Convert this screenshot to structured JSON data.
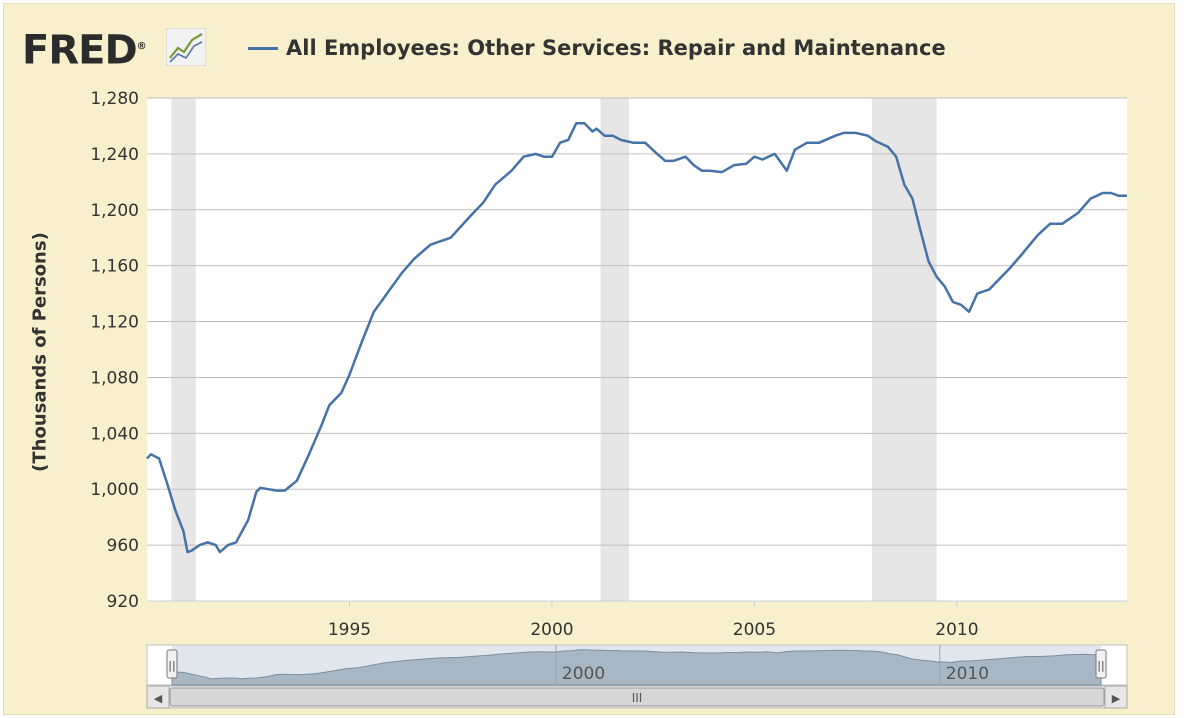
{
  "header": {
    "logo_text": "FRED",
    "logo_registered": "®",
    "logo_icon": "line-chart-icon"
  },
  "colors": {
    "series": "#4572a7",
    "recession": "#e6e6e6",
    "background": "#f8efcd",
    "plot_bg": "#ffffff",
    "grid": "#c0c0c0"
  },
  "chart_data": {
    "type": "line",
    "title": "",
    "xlabel": "",
    "ylabel": "(Thousands of Persons)",
    "x_range": [
      1990.0,
      2014.2
    ],
    "ylim": [
      920,
      1280
    ],
    "y_ticks": [
      920,
      960,
      1000,
      1040,
      1080,
      1120,
      1160,
      1200,
      1240,
      1280
    ],
    "y_tick_labels": [
      "920",
      "960",
      "1,000",
      "1,040",
      "1,080",
      "1,120",
      "1,160",
      "1,200",
      "1,240",
      "1,280"
    ],
    "x_ticks": [
      1995,
      2000,
      2005,
      2010
    ],
    "x_tick_labels": [
      "1995",
      "2000",
      "2005",
      "2010"
    ],
    "grid": true,
    "legend_placement": "top-left",
    "recessions": [
      [
        1990.6,
        1991.2
      ],
      [
        2001.2,
        2001.9
      ],
      [
        2007.9,
        2009.5
      ]
    ],
    "series": [
      {
        "name": "All Employees: Other Services: Repair and Maintenance",
        "x": [
          1990.0,
          1990.1,
          1990.3,
          1990.5,
          1990.7,
          1990.9,
          1991.0,
          1991.1,
          1991.3,
          1991.5,
          1991.7,
          1991.8,
          1992.0,
          1992.2,
          1992.5,
          1992.7,
          1992.8,
          1993.0,
          1993.2,
          1993.4,
          1993.7,
          1994.0,
          1994.3,
          1994.5,
          1994.8,
          1995.0,
          1995.3,
          1995.6,
          1996.0,
          1996.3,
          1996.6,
          1997.0,
          1997.5,
          1998.0,
          1998.3,
          1998.6,
          1999.0,
          1999.3,
          1999.6,
          1999.8,
          2000.0,
          2000.2,
          2000.4,
          2000.6,
          2000.8,
          2001.0,
          2001.1,
          2001.3,
          2001.5,
          2001.7,
          2002.0,
          2002.3,
          2002.6,
          2002.8,
          2003.0,
          2003.3,
          2003.5,
          2003.7,
          2003.9,
          2004.2,
          2004.5,
          2004.8,
          2005.0,
          2005.2,
          2005.5,
          2005.8,
          2006.0,
          2006.3,
          2006.6,
          2007.0,
          2007.2,
          2007.5,
          2007.8,
          2008.0,
          2008.3,
          2008.5,
          2008.7,
          2008.9,
          2009.1,
          2009.3,
          2009.5,
          2009.7,
          2009.9,
          2010.1,
          2010.3,
          2010.5,
          2010.8,
          2011.0,
          2011.3,
          2011.6,
          2012.0,
          2012.3,
          2012.6,
          2013.0,
          2013.3,
          2013.6,
          2013.8,
          2014.0,
          2014.2
        ],
        "y": [
          1022,
          1025,
          1022,
          1004,
          985,
          970,
          955,
          956,
          960,
          962,
          960,
          955,
          960,
          962,
          978,
          998,
          1001,
          1000,
          999,
          999,
          1006,
          1025,
          1045,
          1060,
          1069,
          1082,
          1105,
          1127,
          1143,
          1155,
          1165,
          1175,
          1180,
          1196,
          1205,
          1218,
          1228,
          1238,
          1240,
          1238,
          1238,
          1248,
          1250,
          1262,
          1262,
          1256,
          1258,
          1253,
          1253,
          1250,
          1248,
          1248,
          1240,
          1235,
          1235,
          1238,
          1232,
          1228,
          1228,
          1227,
          1232,
          1233,
          1238,
          1236,
          1240,
          1228,
          1243,
          1248,
          1248,
          1253,
          1255,
          1255,
          1253,
          1249,
          1245,
          1238,
          1218,
          1208,
          1185,
          1163,
          1152,
          1145,
          1134,
          1132,
          1127,
          1140,
          1143,
          1149,
          1158,
          1168,
          1182,
          1190,
          1190,
          1198,
          1208,
          1212,
          1212,
          1210,
          1210
        ]
      }
    ]
  },
  "navigator": {
    "labels": [
      "2000",
      "2010"
    ],
    "label_years": [
      2000,
      2010
    ],
    "range_start": 1990.0,
    "range_end": 2014.2,
    "scroll_left_glyph": "◀",
    "scroll_right_glyph": "▶",
    "thumb_grip": "III",
    "handle_glyph": "||"
  }
}
